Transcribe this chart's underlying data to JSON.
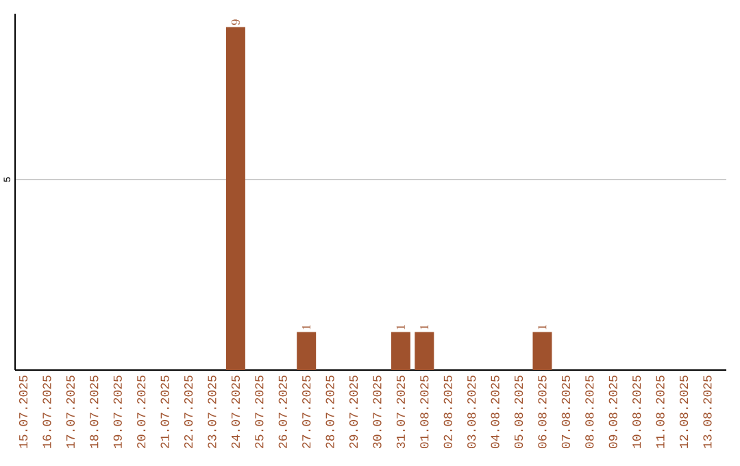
{
  "chart_data": {
    "type": "bar",
    "categories": [
      "15.07.2025",
      "16.07.2025",
      "17.07.2025",
      "18.07.2025",
      "19.07.2025",
      "20.07.2025",
      "21.07.2025",
      "22.07.2025",
      "23.07.2025",
      "24.07.2025",
      "25.07.2025",
      "26.07.2025",
      "27.07.2025",
      "28.07.2025",
      "29.07.2025",
      "30.07.2025",
      "31.07.2025",
      "01.08.2025",
      "02.08.2025",
      "03.08.2025",
      "04.08.2025",
      "05.08.2025",
      "06.08.2025",
      "07.08.2025",
      "08.08.2025",
      "09.08.2025",
      "10.08.2025",
      "11.08.2025",
      "12.08.2025",
      "13.08.2025"
    ],
    "values": [
      null,
      null,
      null,
      null,
      null,
      null,
      null,
      null,
      null,
      9,
      null,
      null,
      1,
      null,
      null,
      null,
      1,
      1,
      null,
      null,
      null,
      null,
      1,
      null,
      null,
      null,
      null,
      null,
      null,
      null
    ],
    "color": "#a0522d",
    "ylim": [
      0,
      9.35
    ],
    "yticks": [
      5
    ],
    "grid": "y",
    "data_labels": true
  }
}
